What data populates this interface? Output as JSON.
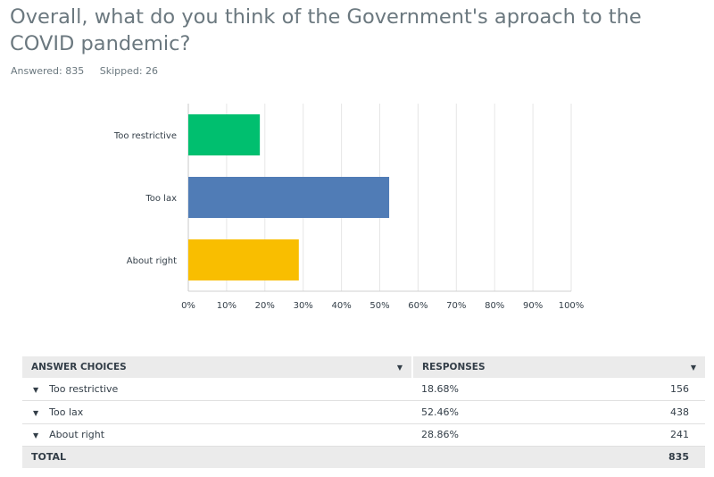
{
  "question": {
    "title": "Overall, what do you think of the Government's aproach to the COVID pandemic?",
    "answered": "Answered: 835",
    "skipped": "Skipped: 26"
  },
  "chart_data": {
    "type": "bar",
    "orientation": "horizontal",
    "categories": [
      "Too restrictive",
      "Too lax",
      "About right"
    ],
    "values": [
      18.68,
      52.46,
      28.86
    ],
    "colors": [
      "#00bf6f",
      "#507cb6",
      "#f9be00"
    ],
    "xlim": [
      0,
      100
    ],
    "xticks": [
      "0%",
      "10%",
      "20%",
      "30%",
      "40%",
      "50%",
      "60%",
      "70%",
      "80%",
      "90%",
      "100%"
    ],
    "grid": true
  },
  "table": {
    "headers": {
      "choices": "ANSWER CHOICES",
      "responses": "RESPONSES"
    },
    "rows": [
      {
        "choice": "Too restrictive",
        "percent": "18.68%",
        "count": "156"
      },
      {
        "choice": "Too lax",
        "percent": "52.46%",
        "count": "438"
      },
      {
        "choice": "About right",
        "percent": "28.86%",
        "count": "241"
      }
    ],
    "total": {
      "label": "TOTAL",
      "count": "835"
    }
  }
}
